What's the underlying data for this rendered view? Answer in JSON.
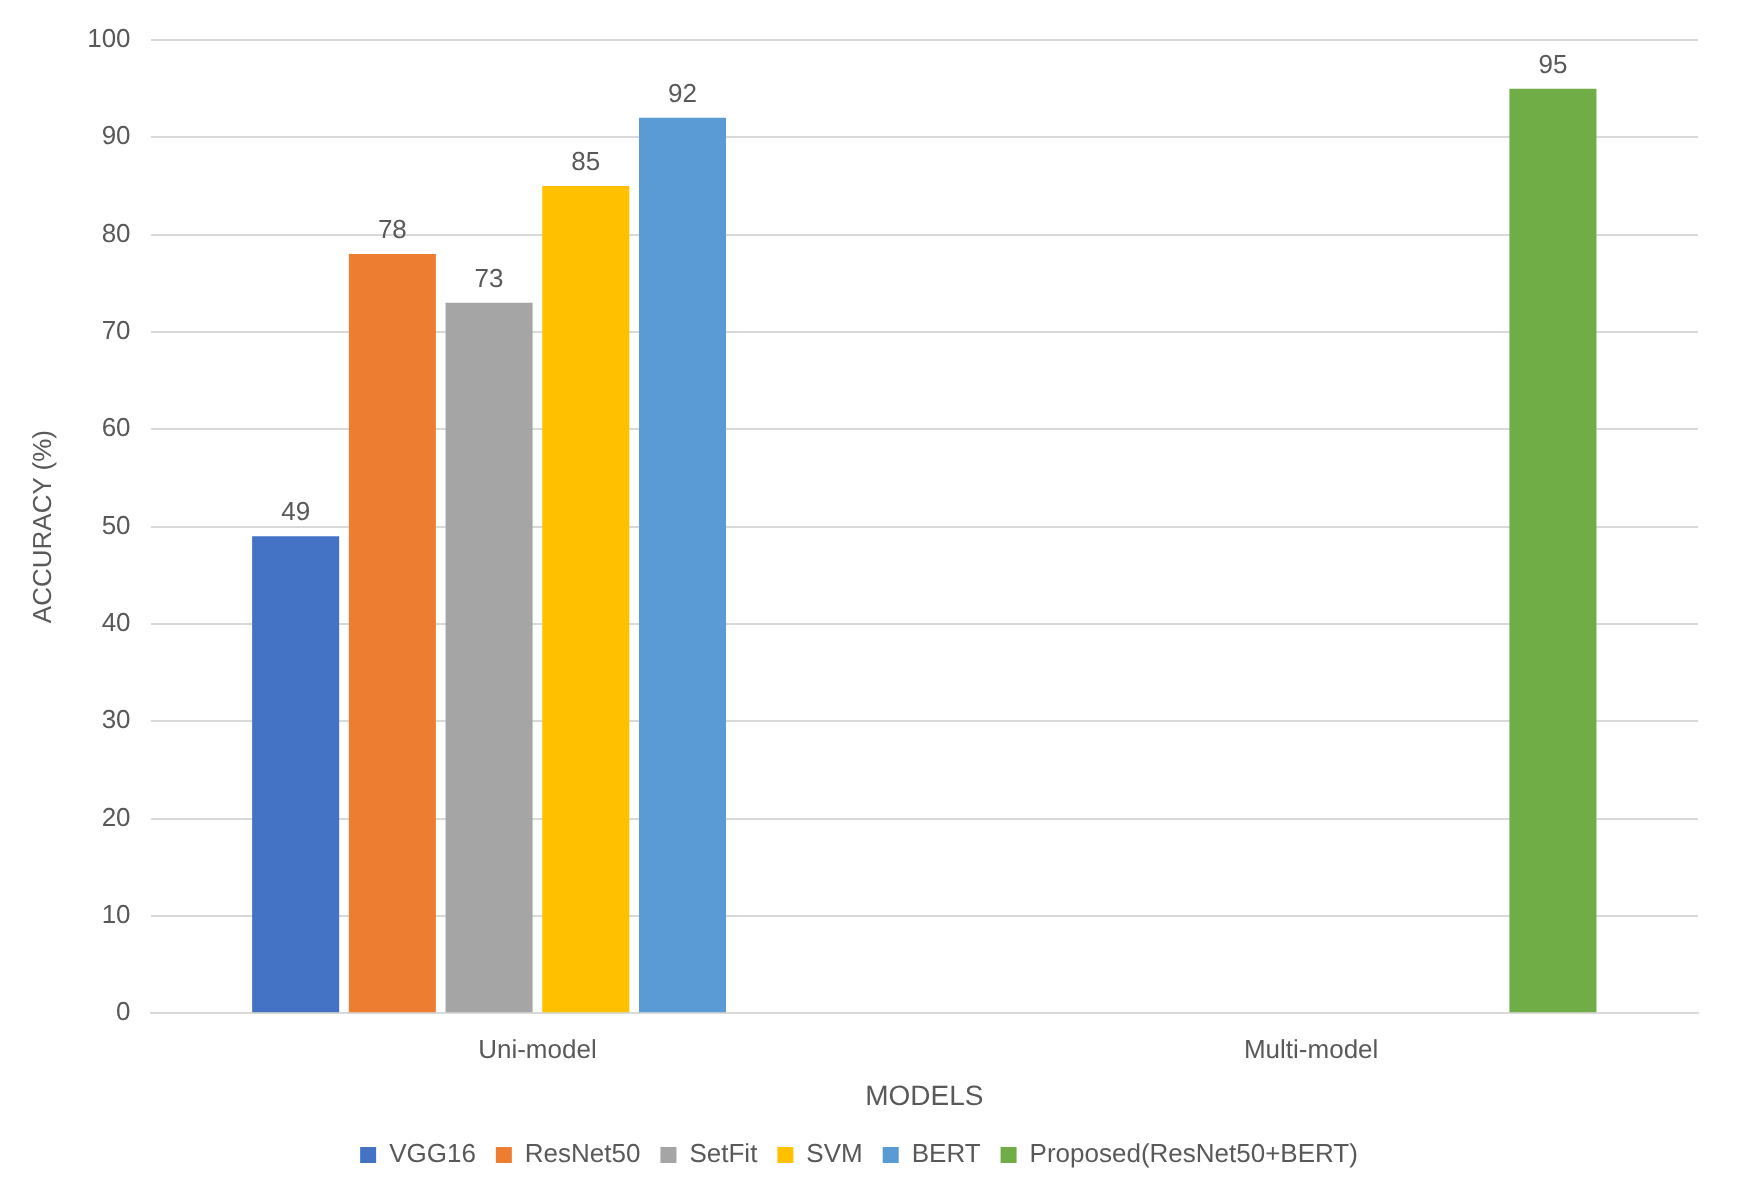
{
  "chart_data": {
    "type": "bar",
    "xlabel": "MODELS",
    "ylabel": "ACCURACY (%)",
    "categories": [
      "Uni-model",
      "Multi-model"
    ],
    "series": [
      {
        "name": "VGG16",
        "color": "#4472c4",
        "values": [
          49,
          null
        ]
      },
      {
        "name": "ResNet50",
        "color": "#ed7d31",
        "values": [
          78,
          null
        ]
      },
      {
        "name": "SetFit",
        "color": "#a5a5a5",
        "values": [
          73,
          null
        ]
      },
      {
        "name": "SVM",
        "color": "#ffc000",
        "values": [
          85,
          null
        ]
      },
      {
        "name": "BERT",
        "color": "#5b9bd5",
        "values": [
          92,
          null
        ]
      },
      {
        "name": "Proposed(ResNet50+BERT)",
        "color": "#70ad47",
        "values": [
          null,
          95
        ]
      }
    ],
    "ylim": [
      0,
      100
    ],
    "yticks": [
      0,
      10,
      20,
      30,
      40,
      50,
      60,
      70,
      80,
      90,
      100
    ],
    "grid": "y",
    "legend": "bottom",
    "data_labels": true
  }
}
